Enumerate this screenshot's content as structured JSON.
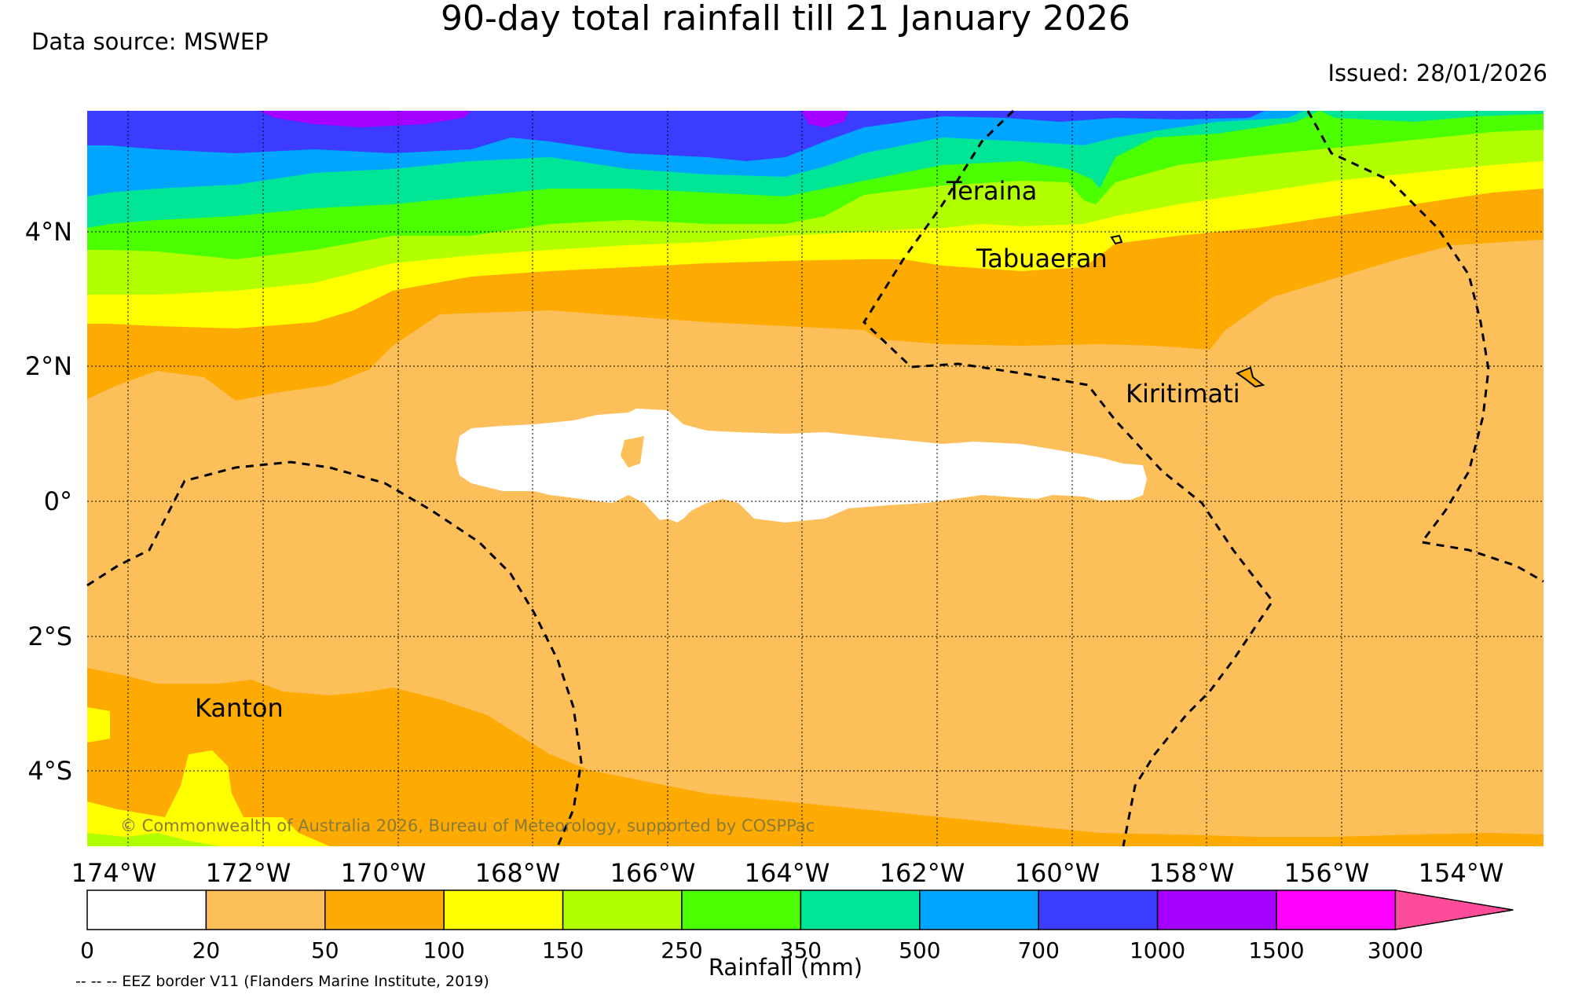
{
  "title": "90-day total rainfall till 21 January 2026",
  "data_source": "Data source: MSWEP",
  "issued": "Issued: 28/01/2026",
  "copyright": "© Commonwealth of Australia 2026, Bureau of Meteorology, supported by COSPPac",
  "footnote": "-- -- -- EEZ border V11 (Flanders Marine Institute, 2019)",
  "colorbar": {
    "title": "Rainfall (mm)",
    "ticks": [
      "0",
      "20",
      "50",
      "100",
      "150",
      "250",
      "350",
      "500",
      "700",
      "1000",
      "1500",
      "3000"
    ],
    "colors": [
      "#ffffff",
      "#fdbf5a",
      "#fdab02",
      "#ffff00",
      "#b2ff00",
      "#4cff00",
      "#00e596",
      "#00a5ff",
      "#3c3cff",
      "#a500ff",
      "#ff00ff"
    ],
    "extend_color": "#ff4c9a"
  },
  "axes": {
    "x_ticks": [
      "174°W",
      "172°W",
      "170°W",
      "168°W",
      "166°W",
      "164°W",
      "162°W",
      "160°W",
      "158°W",
      "156°W",
      "154°W"
    ],
    "y_ticks": [
      "4°N",
      "2°N",
      "0°",
      "2°S",
      "4°S"
    ]
  },
  "places": [
    "Teraina",
    "Tabuaeran",
    "Kiritimati",
    "Kanton"
  ]
}
